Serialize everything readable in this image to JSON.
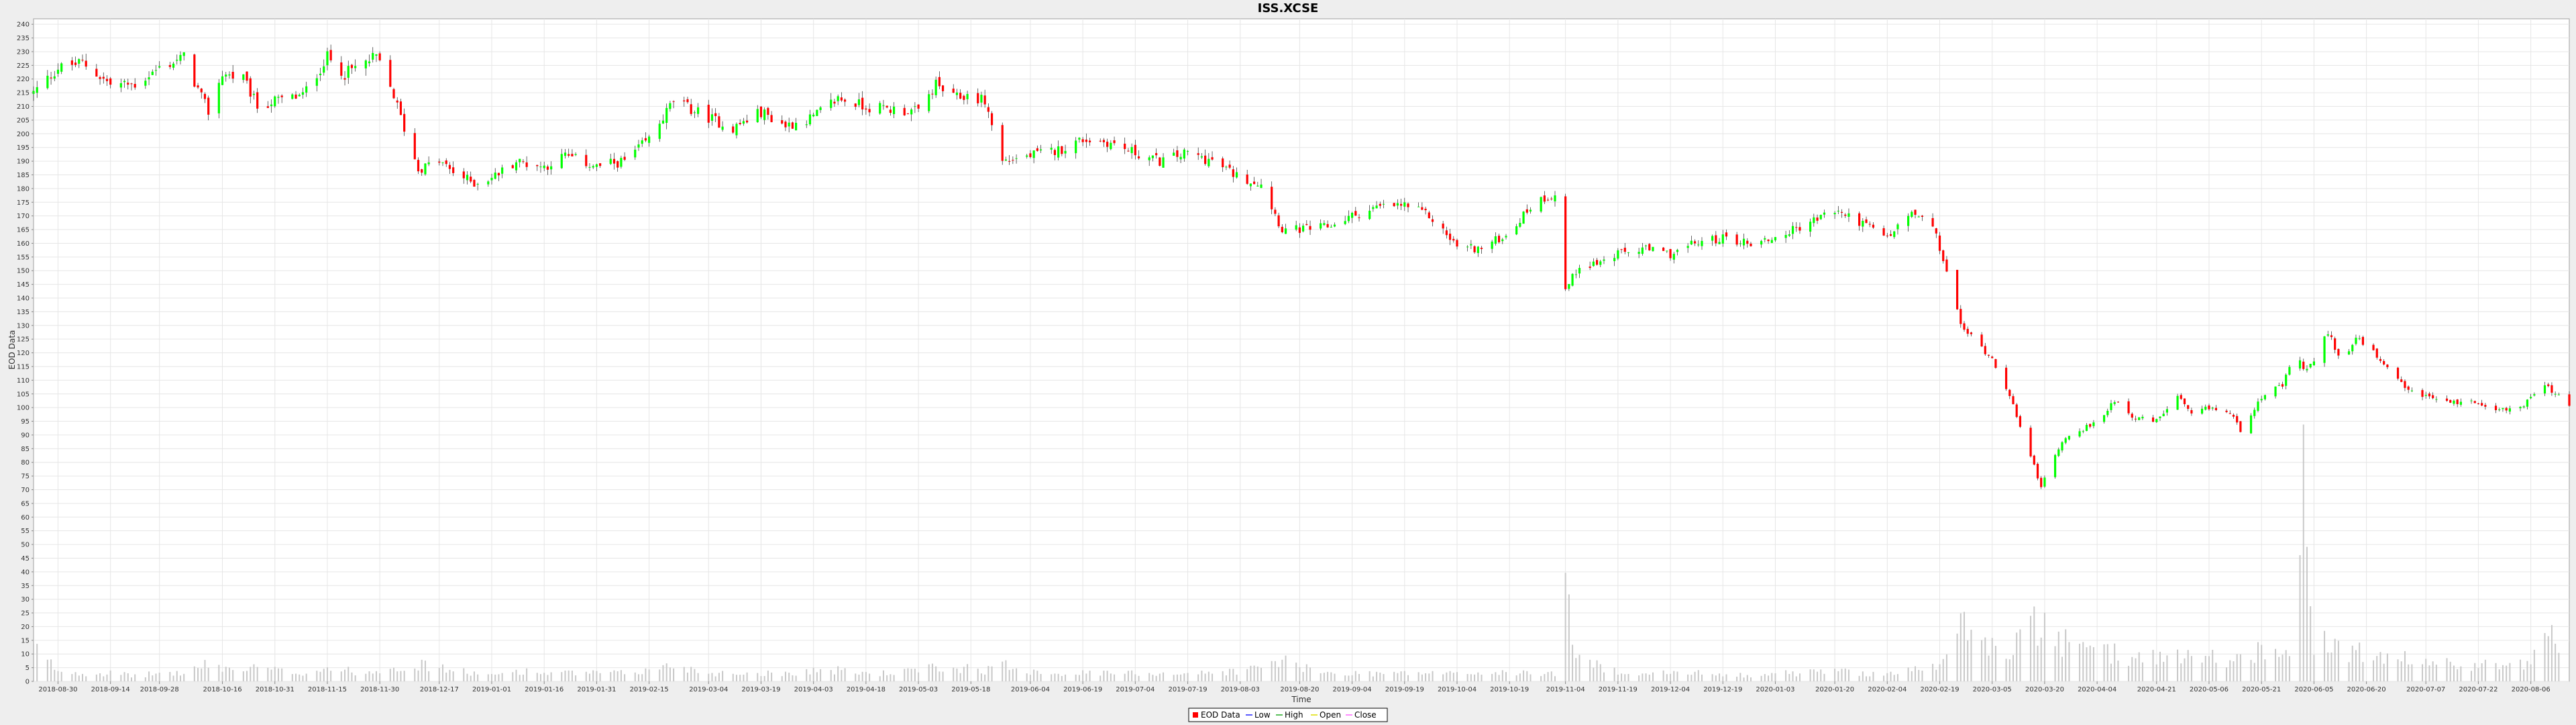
{
  "chart_data": {
    "type": "candlestick",
    "title": "ISS.XCSE",
    "xlabel": "Time",
    "ylabel": "EOD Data",
    "ylim": [
      0,
      242
    ],
    "yticks": [
      0,
      5,
      10,
      15,
      20,
      25,
      30,
      35,
      40,
      45,
      50,
      55,
      60,
      65,
      70,
      75,
      80,
      85,
      90,
      95,
      100,
      105,
      110,
      115,
      120,
      125,
      130,
      135,
      140,
      145,
      150,
      155,
      160,
      165,
      170,
      175,
      180,
      185,
      190,
      195,
      200,
      205,
      210,
      215,
      220,
      225,
      230,
      235,
      240
    ],
    "xlim": [
      "2018-08-23",
      "2020-08-17"
    ],
    "xticks": [
      "2018-08-30",
      "2018-09-14",
      "2018-09-28",
      "2018-10-16",
      "2018-10-31",
      "2018-11-15",
      "2018-11-30",
      "2018-12-17",
      "2019-01-01",
      "2019-01-16",
      "2019-01-31",
      "2019-02-15",
      "2019-03-04",
      "2019-03-19",
      "2019-04-03",
      "2019-04-18",
      "2019-05-03",
      "2019-05-18",
      "2019-06-04",
      "2019-06-19",
      "2019-07-04",
      "2019-07-19",
      "2019-08-03",
      "2019-08-20",
      "2019-09-04",
      "2019-09-19",
      "2019-10-04",
      "2019-10-19",
      "2019-11-04",
      "2019-11-19",
      "2019-12-04",
      "2019-12-19",
      "2020-01-03",
      "2020-01-20",
      "2020-02-04",
      "2020-02-19",
      "2020-03-05",
      "2020-03-20",
      "2020-04-04",
      "2020-04-21",
      "2020-05-06",
      "2020-05-21",
      "2020-06-05",
      "2020-06-20",
      "2020-07-07",
      "2020-07-22",
      "2020-08-06"
    ],
    "grid": true,
    "legend": {
      "placement": "bottom-center",
      "entries": [
        {
          "label": "EOD Data",
          "color": "#ff0000",
          "symbol": "square"
        },
        {
          "label": "Low",
          "color": "#2222ff",
          "symbol": "line"
        },
        {
          "label": "High",
          "color": "#22aa22",
          "symbol": "line"
        },
        {
          "label": "Open",
          "color": "#dddd00",
          "symbol": "line"
        },
        {
          "label": "Close",
          "color": "#ff66ff",
          "symbol": "line"
        }
      ]
    },
    "colors": {
      "up": "#00ff00",
      "down": "#ff0000",
      "wick": "#000000",
      "volume": "#c8c8c8"
    },
    "series_type": "OHLC with volume",
    "anchors": [
      {
        "date": "2018-08-23",
        "close": 215,
        "volume": 12
      },
      {
        "date": "2018-08-30",
        "close": 224,
        "volume": 4
      },
      {
        "date": "2018-09-06",
        "close": 226,
        "volume": 3
      },
      {
        "date": "2018-09-14",
        "close": 218,
        "volume": 3
      },
      {
        "date": "2018-09-21",
        "close": 218,
        "volume": 2
      },
      {
        "date": "2018-09-28",
        "close": 224,
        "volume": 3
      },
      {
        "date": "2018-10-05",
        "close": 228,
        "volume": 3
      },
      {
        "date": "2018-10-09",
        "close": 216,
        "volume": 5
      },
      {
        "date": "2018-10-12",
        "close": 208,
        "volume": 6
      },
      {
        "date": "2018-10-16",
        "close": 222,
        "volume": 5
      },
      {
        "date": "2018-10-22",
        "close": 220,
        "volume": 4
      },
      {
        "date": "2018-10-26",
        "close": 210,
        "volume": 5
      },
      {
        "date": "2018-10-31",
        "close": 212,
        "volume": 4
      },
      {
        "date": "2018-11-08",
        "close": 214,
        "volume": 3
      },
      {
        "date": "2018-11-15",
        "close": 228,
        "volume": 5
      },
      {
        "date": "2018-11-20",
        "close": 222,
        "volume": 4
      },
      {
        "date": "2018-11-26",
        "close": 226,
        "volume": 3
      },
      {
        "date": "2018-11-29",
        "close": 228,
        "volume": 4
      },
      {
        "date": "2018-12-04",
        "close": 214,
        "volume": 6
      },
      {
        "date": "2018-12-07",
        "close": 202,
        "volume": 5
      },
      {
        "date": "2018-12-11",
        "close": 187,
        "volume": 6
      },
      {
        "date": "2018-12-17",
        "close": 190,
        "volume": 5
      },
      {
        "date": "2018-12-21",
        "close": 186,
        "volume": 4
      },
      {
        "date": "2018-12-27",
        "close": 182,
        "volume": 3
      },
      {
        "date": "2019-01-01",
        "close": 184,
        "volume": 2
      },
      {
        "date": "2019-01-08",
        "close": 190,
        "volume": 4
      },
      {
        "date": "2019-01-16",
        "close": 188,
        "volume": 3
      },
      {
        "date": "2019-01-22",
        "close": 192,
        "volume": 3
      },
      {
        "date": "2019-01-31",
        "close": 188,
        "volume": 3
      },
      {
        "date": "2019-02-08",
        "close": 190,
        "volume": 3
      },
      {
        "date": "2019-02-15",
        "close": 198,
        "volume": 4
      },
      {
        "date": "2019-02-22",
        "close": 212,
        "volume": 6
      },
      {
        "date": "2019-03-04",
        "close": 206,
        "volume": 3
      },
      {
        "date": "2019-03-11",
        "close": 202,
        "volume": 3
      },
      {
        "date": "2019-03-19",
        "close": 208,
        "volume": 3
      },
      {
        "date": "2019-03-26",
        "close": 203,
        "volume": 3
      },
      {
        "date": "2019-04-03",
        "close": 206,
        "volume": 4
      },
      {
        "date": "2019-04-10",
        "close": 213,
        "volume": 4
      },
      {
        "date": "2019-04-18",
        "close": 210,
        "volume": 3
      },
      {
        "date": "2019-04-25",
        "close": 209,
        "volume": 3
      },
      {
        "date": "2019-05-03",
        "close": 208,
        "volume": 4
      },
      {
        "date": "2019-05-08",
        "close": 218,
        "volume": 5
      },
      {
        "date": "2019-05-13",
        "close": 213,
        "volume": 4
      },
      {
        "date": "2019-05-18",
        "close": 214,
        "volume": 6
      },
      {
        "date": "2019-05-22",
        "close": 212,
        "volume": 4
      },
      {
        "date": "2019-05-27",
        "close": 190,
        "volume": 6
      },
      {
        "date": "2019-06-04",
        "close": 192,
        "volume": 4
      },
      {
        "date": "2019-06-12",
        "close": 194,
        "volume": 3
      },
      {
        "date": "2019-06-19",
        "close": 198,
        "volume": 3
      },
      {
        "date": "2019-06-26",
        "close": 197,
        "volume": 3
      },
      {
        "date": "2019-07-04",
        "close": 193,
        "volume": 3
      },
      {
        "date": "2019-07-11",
        "close": 190,
        "volume": 3
      },
      {
        "date": "2019-07-19",
        "close": 193,
        "volume": 3
      },
      {
        "date": "2019-07-26",
        "close": 190,
        "volume": 3
      },
      {
        "date": "2019-08-03",
        "close": 184,
        "volume": 4
      },
      {
        "date": "2019-08-09",
        "close": 182,
        "volume": 5
      },
      {
        "date": "2019-08-15",
        "close": 165,
        "volume": 8
      },
      {
        "date": "2019-08-20",
        "close": 165,
        "volume": 5
      },
      {
        "date": "2019-08-28",
        "close": 166,
        "volume": 3
      },
      {
        "date": "2019-09-04",
        "close": 170,
        "volume": 3
      },
      {
        "date": "2019-09-11",
        "close": 173,
        "volume": 3
      },
      {
        "date": "2019-09-19",
        "close": 174,
        "volume": 3
      },
      {
        "date": "2019-09-26",
        "close": 170,
        "volume": 3
      },
      {
        "date": "2019-10-04",
        "close": 159,
        "volume": 3
      },
      {
        "date": "2019-10-11",
        "close": 158,
        "volume": 3
      },
      {
        "date": "2019-10-19",
        "close": 164,
        "volume": 3
      },
      {
        "date": "2019-10-26",
        "close": 175,
        "volume": 3
      },
      {
        "date": "2019-11-01",
        "close": 178,
        "volume": 3
      },
      {
        "date": "2019-11-04",
        "close": 143,
        "volume": 30
      },
      {
        "date": "2019-11-08",
        "close": 152,
        "volume": 8
      },
      {
        "date": "2019-11-14",
        "close": 153,
        "volume": 5
      },
      {
        "date": "2019-11-19",
        "close": 156,
        "volume": 4
      },
      {
        "date": "2019-11-26",
        "close": 158,
        "volume": 3
      },
      {
        "date": "2019-12-04",
        "close": 156,
        "volume": 3
      },
      {
        "date": "2019-12-11",
        "close": 160,
        "volume": 3
      },
      {
        "date": "2019-12-19",
        "close": 162,
        "volume": 3
      },
      {
        "date": "2019-12-27",
        "close": 160,
        "volume": 2
      },
      {
        "date": "2020-01-03",
        "close": 162,
        "volume": 3
      },
      {
        "date": "2020-01-10",
        "close": 166,
        "volume": 3
      },
      {
        "date": "2020-01-20",
        "close": 172,
        "volume": 4
      },
      {
        "date": "2020-01-27",
        "close": 168,
        "volume": 3
      },
      {
        "date": "2020-02-04",
        "close": 162,
        "volume": 3
      },
      {
        "date": "2020-02-11",
        "close": 171,
        "volume": 4
      },
      {
        "date": "2020-02-17",
        "close": 166,
        "volume": 5
      },
      {
        "date": "2020-02-21",
        "close": 150,
        "volume": 8
      },
      {
        "date": "2020-02-25",
        "close": 130,
        "volume": 22
      },
      {
        "date": "2020-03-02",
        "close": 122,
        "volume": 14
      },
      {
        "date": "2020-03-05",
        "close": 118,
        "volume": 12
      },
      {
        "date": "2020-03-10",
        "close": 105,
        "volume": 12
      },
      {
        "date": "2020-03-13",
        "close": 92,
        "volume": 16
      },
      {
        "date": "2020-03-17",
        "close": 80,
        "volume": 20
      },
      {
        "date": "2020-03-19",
        "close": 70,
        "volume": 22
      },
      {
        "date": "2020-03-20",
        "close": 74,
        "volume": 18
      },
      {
        "date": "2020-03-25",
        "close": 88,
        "volume": 14
      },
      {
        "date": "2020-03-30",
        "close": 92,
        "volume": 12
      },
      {
        "date": "2020-04-04",
        "close": 94,
        "volume": 10
      },
      {
        "date": "2020-04-09",
        "close": 103,
        "volume": 10
      },
      {
        "date": "2020-04-15",
        "close": 96,
        "volume": 9
      },
      {
        "date": "2020-04-21",
        "close": 95,
        "volume": 9
      },
      {
        "date": "2020-04-27",
        "close": 104,
        "volume": 10
      },
      {
        "date": "2020-05-01",
        "close": 97,
        "volume": 9
      },
      {
        "date": "2020-05-06",
        "close": 100,
        "volume": 9
      },
      {
        "date": "2020-05-12",
        "close": 98,
        "volume": 8
      },
      {
        "date": "2020-05-15",
        "close": 92,
        "volume": 8
      },
      {
        "date": "2020-05-21",
        "close": 104,
        "volume": 12
      },
      {
        "date": "2020-05-27",
        "close": 108,
        "volume": 9
      },
      {
        "date": "2020-05-31",
        "close": 120,
        "volume": 12
      },
      {
        "date": "2020-06-02",
        "close": 114,
        "volume": 76
      },
      {
        "date": "2020-06-05",
        "close": 116,
        "volume": 14
      },
      {
        "date": "2020-06-09",
        "close": 128,
        "volume": 13
      },
      {
        "date": "2020-06-13",
        "close": 116,
        "volume": 10
      },
      {
        "date": "2020-06-17",
        "close": 125,
        "volume": 11
      },
      {
        "date": "2020-06-20",
        "close": 123,
        "volume": 9
      },
      {
        "date": "2020-06-25",
        "close": 115,
        "volume": 8
      },
      {
        "date": "2020-07-01",
        "close": 107,
        "volume": 8
      },
      {
        "date": "2020-07-07",
        "close": 104,
        "volume": 7
      },
      {
        "date": "2020-07-14",
        "close": 102,
        "volume": 6
      },
      {
        "date": "2020-07-22",
        "close": 102,
        "volume": 6
      },
      {
        "date": "2020-07-29",
        "close": 99,
        "volume": 6
      },
      {
        "date": "2020-08-03",
        "close": 100,
        "volume": 6
      },
      {
        "date": "2020-08-06",
        "close": 104,
        "volume": 7
      },
      {
        "date": "2020-08-10",
        "close": 108,
        "volume": 28
      },
      {
        "date": "2020-08-13",
        "close": 105,
        "volume": 10
      },
      {
        "date": "2020-08-17",
        "close": 101,
        "volume": 12
      }
    ]
  }
}
